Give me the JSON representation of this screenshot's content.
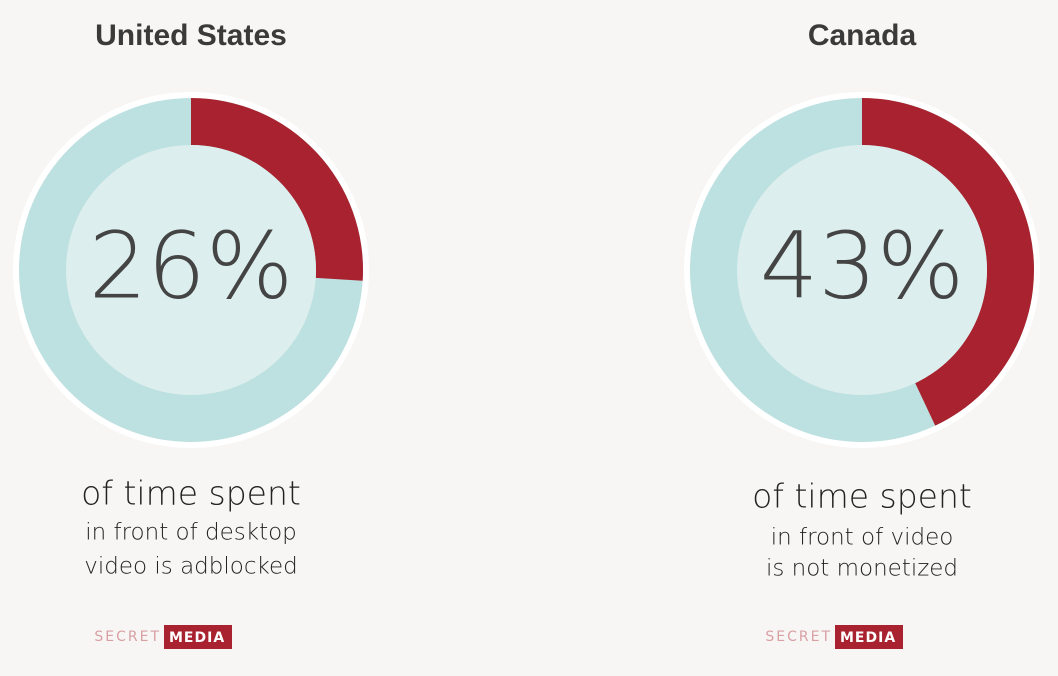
{
  "chart_data": [
    {
      "type": "donut",
      "title": "United States",
      "values": [
        26
      ],
      "value_labels": [
        "26%"
      ],
      "color": "#a8232f",
      "track_color": "#bde0e0",
      "annotations": [
        "of time spent",
        "in front of desktop",
        "video is adblocked"
      ],
      "logo": [
        "SECRET",
        "MEDIA"
      ]
    },
    {
      "type": "donut",
      "title": "Canada",
      "values": [
        43
      ],
      "value_labels": [
        "43%"
      ],
      "color": "#a8232f",
      "track_color": "#bde0e0",
      "annotations": [
        "of time spent",
        "in front of video",
        "is not monetized"
      ],
      "logo": [
        "SECRET",
        "MEDIA"
      ]
    }
  ]
}
